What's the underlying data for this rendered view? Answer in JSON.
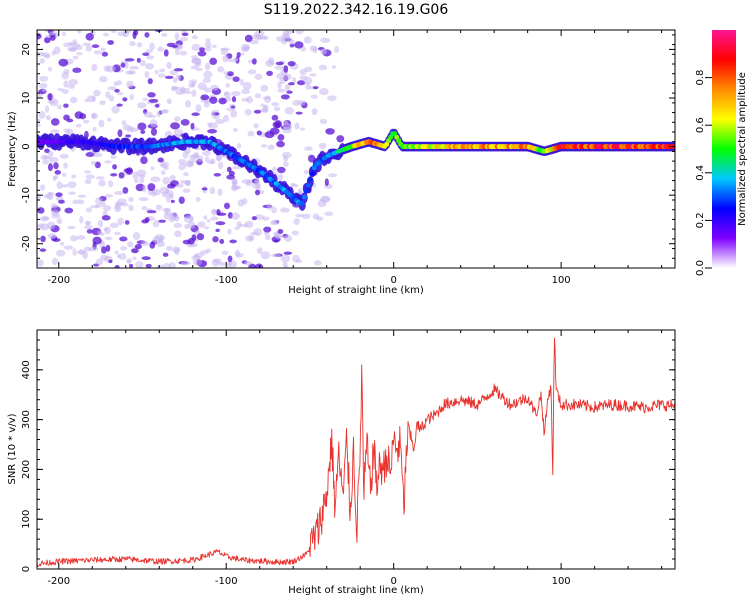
{
  "figure_title": "S119.2022.342.16.19.G06",
  "colors": {
    "snr_line": "#e8322e",
    "spec_faint": "#c9b6f0",
    "spec_dark": "#5a12d6",
    "axis": "#000000"
  },
  "chart_data": [
    {
      "type": "heatmap",
      "title": "S119.2022.342.16.19.G06",
      "xlabel": "Height of straight line (km)",
      "ylabel": "Frequency (Hz)",
      "xlim": [
        -213,
        168
      ],
      "ylim": [
        -25,
        24
      ],
      "xticks": [
        -200,
        -100,
        0,
        100
      ],
      "yticks": [
        -20,
        -10,
        0,
        10,
        20
      ],
      "colorbar": {
        "label": "Normalized spectral amplitude",
        "range": [
          0,
          1
        ],
        "ticks": [
          "0.0",
          "0.2",
          "0.4",
          "0.6",
          "0.8"
        ],
        "tick_values": [
          0.0,
          0.2,
          0.4,
          0.6,
          0.8
        ],
        "colormap": [
          "#ffffff",
          "#7f00ff",
          "#0000ff",
          "#00c8ff",
          "#00ff00",
          "#ffff00",
          "#ff8c00",
          "#ff0000",
          "#ff1493"
        ]
      },
      "ridge": {
        "x": [
          -205,
          -185,
          -165,
          -145,
          -125,
          -110,
          -95,
          -80,
          -65,
          -55,
          -47,
          -40,
          -33,
          -25,
          -15,
          -5,
          0,
          5,
          15,
          40,
          80,
          90,
          100,
          168
        ],
        "y": [
          1,
          1,
          0,
          0,
          1,
          1,
          -2,
          -5,
          -9,
          -12,
          -4,
          -2,
          -1,
          0,
          1,
          0,
          3,
          0,
          0,
          0,
          0,
          -1,
          0,
          0
        ],
        "amplitude": [
          0.15,
          0.2,
          0.25,
          0.3,
          0.35,
          0.35,
          0.3,
          0.3,
          0.35,
          0.3,
          0.3,
          0.35,
          0.4,
          0.55,
          0.8,
          0.6,
          0.5,
          0.5,
          0.6,
          0.7,
          0.75,
          0.5,
          0.85,
          0.85
        ]
      }
    },
    {
      "type": "line",
      "xlabel": "Height of straight line (km)",
      "ylabel": "SNR (10 * v/v)",
      "xlim": [
        -213,
        168
      ],
      "ylim": [
        0,
        480
      ],
      "xticks": [
        -200,
        -100,
        0,
        100
      ],
      "yticks": [
        0,
        100,
        200,
        300,
        400
      ],
      "series": [
        {
          "x": [
            -213,
            -200,
            -180,
            -160,
            -140,
            -120,
            -105,
            -100,
            -90,
            -80,
            -70,
            -60,
            -52,
            -45,
            -40,
            -37,
            -35,
            -33,
            -30,
            -28,
            -26,
            -24,
            -22,
            -20,
            -19,
            -18,
            -16,
            -14,
            -12,
            -10,
            -8,
            -6,
            -4,
            -2,
            0,
            2,
            4,
            6,
            8,
            10,
            12,
            14,
            16,
            20,
            25,
            30,
            40,
            50,
            60,
            70,
            80,
            85,
            88,
            90,
            92,
            94,
            95,
            96,
            97,
            100,
            110,
            120,
            130,
            140,
            150,
            160,
            168
          ],
          "y": [
            10,
            15,
            18,
            20,
            15,
            18,
            35,
            25,
            18,
            16,
            14,
            15,
            30,
            80,
            150,
            260,
            120,
            230,
            140,
            270,
            110,
            240,
            80,
            230,
            420,
            140,
            250,
            160,
            240,
            170,
            210,
            200,
            230,
            190,
            260,
            240,
            250,
            120,
            260,
            270,
            240,
            290,
            280,
            300,
            310,
            330,
            340,
            330,
            360,
            330,
            345,
            310,
            350,
            270,
            340,
            370,
            180,
            480,
            360,
            330,
            330,
            325,
            330,
            328,
            325,
            330,
            328
          ]
        }
      ]
    }
  ]
}
